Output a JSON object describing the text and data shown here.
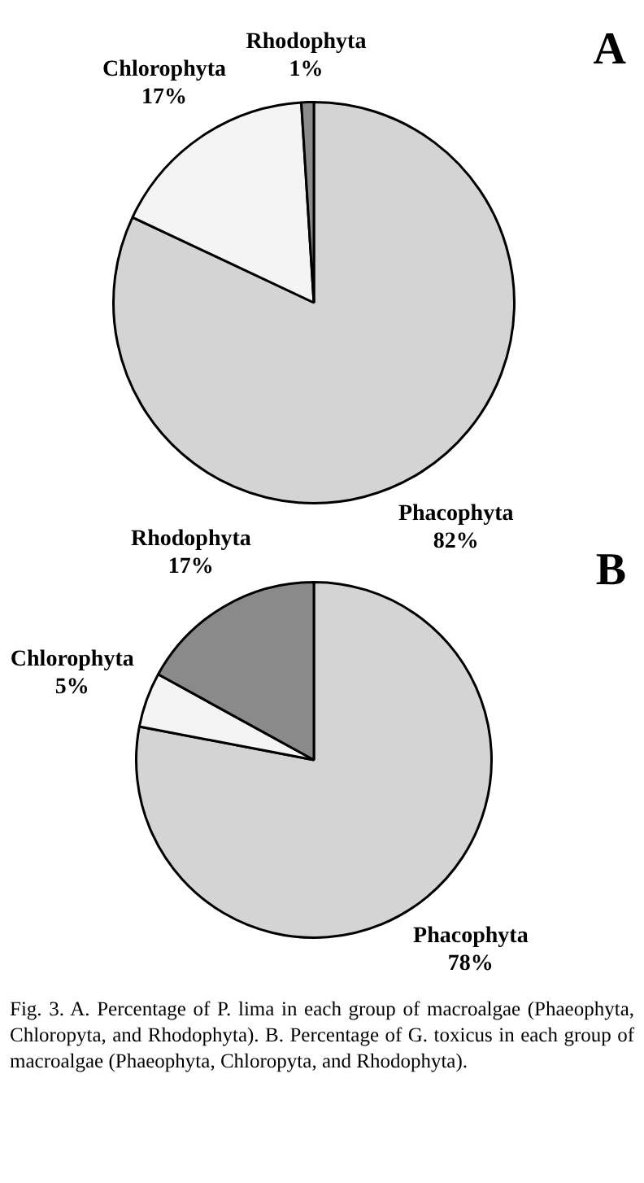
{
  "chart_data": [
    {
      "type": "pie",
      "title": "A",
      "categories": [
        "Phacophyta",
        "Chlorophyta",
        "Rhodophyta"
      ],
      "values": [
        82,
        17,
        1
      ],
      "colors": [
        "#d4d4d4",
        "#f4f4f4",
        "#8a8a8a"
      ],
      "value_labels": [
        "82%",
        "17%",
        "1%"
      ],
      "legend": false
    },
    {
      "type": "pie",
      "title": "B",
      "categories": [
        "Phacophyta",
        "Chlorophyta",
        "Rhodophyta"
      ],
      "values": [
        78,
        5,
        17
      ],
      "colors": [
        "#d4d4d4",
        "#f4f4f4",
        "#8a8a8a"
      ],
      "value_labels": [
        "78%",
        "5%",
        "17%"
      ],
      "legend": false,
      "annotations": [
        "Fig. 3. A. Percentage of P. lima in each group of macroalgae (Phaeophyta, Chloropyta, and Rhodophyta). B. Percentage of G. toxicus in each group of macroalgae (Phaeophyta, Chloropyta, and Rhodophyta)."
      ]
    }
  ]
}
